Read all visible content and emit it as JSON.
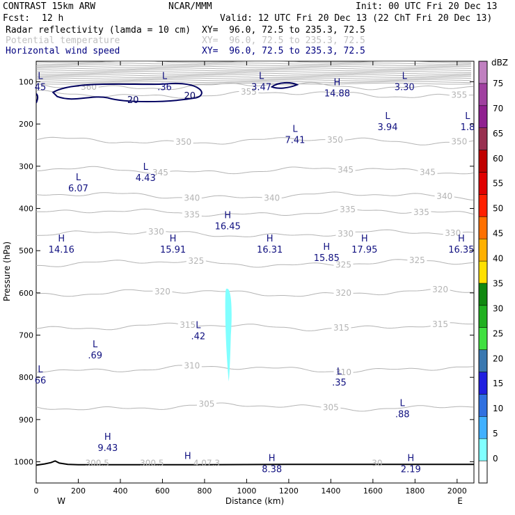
{
  "header": {
    "model": "CONTRAST 15km ARW",
    "org": "NCAR/MMM",
    "init": "Init: 00 UTC Fri 20 Dec 13",
    "fcst_label": "Fcst:",
    "fcst_value": "12 h",
    "valid": "Valid: 12 UTC Fri 20 Dec 13 (22 ChT Fri 20 Dec 13)",
    "fields": [
      {
        "name": "Radar reflectivity (lamda = 10 cm)",
        "xy": "XY=  96.0, 72.5 to 235.3, 72.5"
      },
      {
        "name": "Potential temperature",
        "xy": "XY=  96.0, 72.5 to 235.3, 72.5"
      },
      {
        "name": "Horizontal wind speed",
        "xy": "XY=  96.0, 72.5 to 235.3, 72.5"
      }
    ]
  },
  "chart_data": {
    "type": "contour cross-section",
    "xlabel": "Distance (km)",
    "ylabel": "Pressure (hPa)",
    "xlim": [
      0,
      2080
    ],
    "ylim_pressure": [
      1050,
      50
    ],
    "x_ticks": [
      0,
      200,
      400,
      600,
      800,
      1000,
      1200,
      1400,
      1600,
      1800,
      2000
    ],
    "y_ticks": [
      100,
      200,
      300,
      400,
      500,
      600,
      700,
      800,
      900,
      1000
    ],
    "x_end_labels": {
      "left": "W",
      "right": "E"
    },
    "theta_contours": [
      {
        "value": 305,
        "p": 870,
        "labels_at_km": [
          810,
          1400
        ]
      },
      {
        "value": 310,
        "p": 780,
        "labels_at_km": [
          740,
          1460
        ]
      },
      {
        "value": 315,
        "p": 680,
        "labels_at_km": [
          720,
          1450,
          1920
        ]
      },
      {
        "value": 320,
        "p": 600,
        "labels_at_km": [
          600,
          1460,
          1920
        ]
      },
      {
        "value": 325,
        "p": 530,
        "labels_at_km": [
          760,
          1460,
          1810
        ]
      },
      {
        "value": 330,
        "p": 460,
        "labels_at_km": [
          570,
          1470,
          1980
        ]
      },
      {
        "value": 335,
        "p": 410,
        "labels_at_km": [
          740,
          1480,
          1830
        ]
      },
      {
        "value": 340,
        "p": 370,
        "labels_at_km": [
          740,
          1120,
          1940
        ]
      },
      {
        "value": 345,
        "p": 310,
        "labels_at_km": [
          590,
          1470,
          1860
        ]
      },
      {
        "value": 350,
        "p": 240,
        "labels_at_km": [
          700,
          1420,
          2010
        ]
      },
      {
        "value": 355,
        "p": 130,
        "labels_at_km": [
          1010,
          2010
        ]
      },
      {
        "value": 360,
        "p": 110,
        "labels_at_km": [
          250
        ]
      }
    ],
    "surface_theta_labels": [
      {
        "x_km": 290,
        "text": "300.5"
      },
      {
        "x_km": 550,
        "text": "300.5"
      },
      {
        "x_km": 810,
        "text": "4.07.3"
      },
      {
        "x_km": 1620,
        "text": "30"
      }
    ],
    "wind_speed_contour": {
      "value": 20,
      "label": "20",
      "labels_at_km": [
        460,
        730
      ]
    },
    "reflectivity_shading": {
      "dBZ_range": [
        5,
        10
      ],
      "x_km": [
        900,
        930
      ],
      "p_range": [
        590,
        810
      ]
    },
    "extrema_labels": [
      {
        "type": "L",
        "value": "45",
        "x_km": 20,
        "p": 100
      },
      {
        "type": "L",
        "value": ".36",
        "x_km": 610,
        "p": 100
      },
      {
        "type": "L",
        "value": "3.47",
        "x_km": 1070,
        "p": 100
      },
      {
        "type": "H",
        "value": "14.88",
        "x_km": 1430,
        "p": 115
      },
      {
        "type": "L",
        "value": "3.30",
        "x_km": 1750,
        "p": 100
      },
      {
        "type": "L",
        "value": "3.94",
        "x_km": 1670,
        "p": 195
      },
      {
        "type": "L",
        "value": "1.8",
        "x_km": 2050,
        "p": 195
      },
      {
        "type": "L",
        "value": "7.41",
        "x_km": 1230,
        "p": 225
      },
      {
        "type": "L",
        "value": "4.43",
        "x_km": 520,
        "p": 315
      },
      {
        "type": "L",
        "value": "6.07",
        "x_km": 200,
        "p": 340
      },
      {
        "type": "H",
        "value": "16.45",
        "x_km": 910,
        "p": 430
      },
      {
        "type": "H",
        "value": "14.16",
        "x_km": 120,
        "p": 485
      },
      {
        "type": "H",
        "value": "15.91",
        "x_km": 650,
        "p": 485
      },
      {
        "type": "H",
        "value": "16.31",
        "x_km": 1110,
        "p": 485
      },
      {
        "type": "H",
        "value": "17.95",
        "x_km": 1560,
        "p": 485
      },
      {
        "type": "H",
        "value": "16.35",
        "x_km": 2020,
        "p": 485
      },
      {
        "type": "H",
        "value": "15.85",
        "x_km": 1380,
        "p": 505
      },
      {
        "type": "L",
        "value": ".42",
        "x_km": 770,
        "p": 690
      },
      {
        "type": "L",
        "value": ".69",
        "x_km": 280,
        "p": 735
      },
      {
        "type": "L",
        "value": ".35",
        "x_km": 1440,
        "p": 800
      },
      {
        "type": "L",
        "value": "66",
        "x_km": 20,
        "p": 795
      },
      {
        "type": "L",
        "value": ".88",
        "x_km": 1740,
        "p": 875
      },
      {
        "type": "H",
        "value": "9.43",
        "x_km": 340,
        "p": 955
      }
    ],
    "surface_extrema": [
      {
        "type": "H",
        "value": "",
        "x_km": 720,
        "p": 1000
      },
      {
        "type": "H",
        "value": "8.38",
        "x_km": 1120,
        "p": 1005
      },
      {
        "type": "H",
        "value": "2.19",
        "x_km": 1780,
        "p": 1005
      }
    ]
  },
  "colorbar": {
    "unit": "dBZ",
    "levels": [
      0,
      5,
      10,
      15,
      20,
      25,
      30,
      35,
      40,
      45,
      50,
      55,
      60,
      65,
      70,
      75
    ],
    "colors": [
      "#ffffff",
      "#80ffff",
      "#40b0ff",
      "#3070e0",
      "#2020e0",
      "#3a78b0",
      "#40e040",
      "#20b020",
      "#108810",
      "#ffe000",
      "#ffb000",
      "#ff7000",
      "#ff2000",
      "#e00000",
      "#c00000",
      "#983050",
      "#902090",
      "#a040a0",
      "#c080c0"
    ]
  },
  "colors": {
    "theta": "#b4b4b4",
    "wind": "#000060",
    "labels": "#101080",
    "surface": "#000000"
  }
}
